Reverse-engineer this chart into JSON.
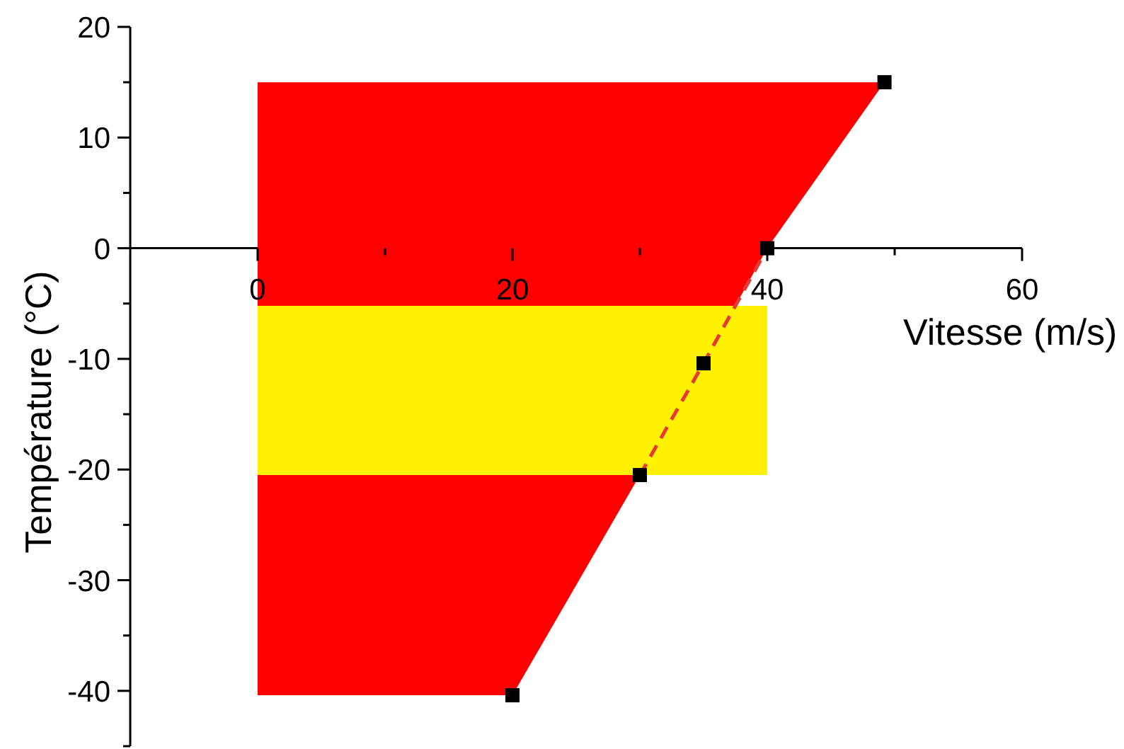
{
  "chart_data": {
    "type": "line",
    "xlabel": "Vitesse (m/s)",
    "ylabel": "Température (°C)",
    "xlim": [
      -10,
      60
    ],
    "xticks": [
      0,
      {
        "value": 10,
        "label": null
      },
      20,
      {
        "value": 30,
        "label": null
      },
      40,
      {
        "value": 50,
        "label": null
      },
      60
    ],
    "ylim": [
      -45,
      20
    ],
    "yticks": [
      20,
      {
        "value": 15,
        "label": null
      },
      10,
      {
        "value": 5,
        "label": null
      },
      0,
      {
        "value": -5,
        "label": null
      },
      -10,
      {
        "value": -15,
        "label": null
      },
      -20,
      {
        "value": -25,
        "label": null
      },
      -30,
      {
        "value": -35,
        "label": null
      },
      -40,
      {
        "value": -45,
        "label": null
      }
    ],
    "series": [
      {
        "color": "#ff0000",
        "x": [
          0,
          20,
          30,
          35,
          40,
          49.2
        ],
        "values": [
          null,
          null,
          null,
          null,
          null,
          null
        ],
        "lower": [
          -40.4,
          -40.4,
          -20.5,
          -10.4,
          0,
          15
        ],
        "upper": [
          15,
          15,
          15,
          15,
          15,
          15
        ]
      },
      {
        "color": "#fff200",
        "x": [
          0,
          40
        ],
        "values": [
          null,
          null
        ],
        "lower": [
          -20.5,
          -20.5
        ],
        "upper": [
          -5.2,
          -5.2
        ]
      },
      {
        "color": "#e53935",
        "x": [
          30,
          35,
          40
        ],
        "values": [
          -20.5,
          -10.4,
          0
        ],
        "line_style": "dashed",
        "marker": "none"
      },
      {
        "type": "scatter",
        "color": "#000000",
        "x": [
          20,
          30,
          35,
          40,
          49.2
        ],
        "values": [
          -40.4,
          -20.5,
          -10.4,
          0,
          15
        ],
        "marker": "square"
      }
    ]
  }
}
